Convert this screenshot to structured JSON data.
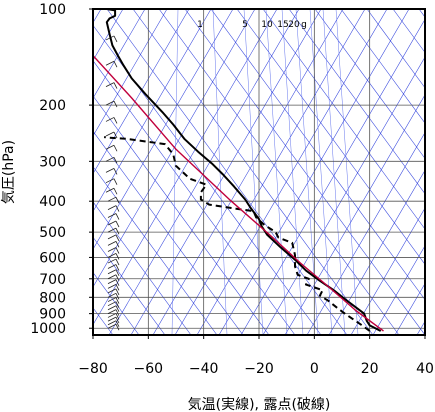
{
  "chart_data": {
    "type": "line",
    "xlabel": "気温(実線), 露点(破線)",
    "ylabel": "気圧(hPa)",
    "xlim": [
      -80,
      40
    ],
    "ylim": [
      1050,
      100
    ],
    "y_scale": "log",
    "x_ticks": [
      "−80",
      "−60",
      "−40",
      "−20",
      "0",
      "20",
      "40"
    ],
    "x_tick_values": [
      -80,
      -60,
      -40,
      -20,
      0,
      20,
      40
    ],
    "y_ticks": [
      "100",
      "200",
      "300",
      "400",
      "500",
      "600",
      "700",
      "800",
      "900",
      "1000"
    ],
    "y_tick_values": [
      100,
      200,
      300,
      400,
      500,
      600,
      700,
      800,
      900,
      1000
    ],
    "mixing_ratio_labels": [
      "1",
      "5",
      "10",
      "15",
      "20",
      "g"
    ],
    "grid": true,
    "series": [
      {
        "role": "temperature",
        "style": "solid",
        "color": "#000000",
        "points": [
          [
            24,
            1020
          ],
          [
            20,
            980
          ],
          [
            19,
            950
          ],
          [
            18,
            900
          ],
          [
            15,
            860
          ],
          [
            11,
            810
          ],
          [
            7,
            760
          ],
          [
            2,
            710
          ],
          [
            -3,
            660
          ],
          [
            -7,
            610
          ],
          [
            -12,
            560
          ],
          [
            -17,
            510
          ],
          [
            -19,
            480
          ],
          [
            -20,
            455
          ],
          [
            -23,
            420
          ],
          [
            -25,
            395
          ],
          [
            -29,
            360
          ],
          [
            -33,
            330
          ],
          [
            -37,
            305
          ],
          [
            -42,
            280
          ],
          [
            -47,
            255
          ],
          [
            -51,
            230
          ],
          [
            -55,
            210
          ],
          [
            -61,
            185
          ],
          [
            -66,
            165
          ],
          [
            -69,
            150
          ],
          [
            -71,
            140
          ],
          [
            -73,
            130
          ],
          [
            -74,
            120
          ],
          [
            -75,
            110
          ],
          [
            -74,
            107
          ],
          [
            -72,
            105
          ],
          [
            -72,
            101
          ],
          [
            -75,
            100
          ]
        ]
      },
      {
        "role": "dewpoint",
        "style": "dashed",
        "color": "#000000",
        "points": [
          [
            20,
            1020
          ],
          [
            18,
            990
          ],
          [
            15,
            950
          ],
          [
            11,
            900
          ],
          [
            8,
            860
          ],
          [
            5,
            820
          ],
          [
            2,
            790
          ],
          [
            3,
            760
          ],
          [
            -3,
            730
          ],
          [
            -2,
            700
          ],
          [
            -6,
            680
          ],
          [
            -7,
            640
          ],
          [
            -7,
            590
          ],
          [
            -8,
            540
          ],
          [
            -13,
            520
          ],
          [
            -14,
            500
          ],
          [
            -18,
            475
          ],
          [
            -21,
            450
          ],
          [
            -22,
            430
          ],
          [
            -30,
            420
          ],
          [
            -38,
            410
          ],
          [
            -41,
            395
          ],
          [
            -41,
            375
          ],
          [
            -39,
            355
          ],
          [
            -45,
            340
          ],
          [
            -50,
            310
          ],
          [
            -51,
            285
          ],
          [
            -54,
            265
          ],
          [
            -68,
            255
          ],
          [
            -74,
            253
          ],
          [
            -76,
            252
          ]
        ]
      },
      {
        "role": "parcel",
        "style": "solid",
        "color": "#c0003c",
        "points": [
          [
            25,
            1020
          ],
          [
            15,
            880
          ],
          [
            5,
            740
          ],
          [
            -5,
            625
          ],
          [
            -15,
            520
          ],
          [
            -30,
            400
          ],
          [
            -50,
            275
          ],
          [
            -66,
            190
          ],
          [
            -80,
            140
          ]
        ]
      }
    ]
  }
}
